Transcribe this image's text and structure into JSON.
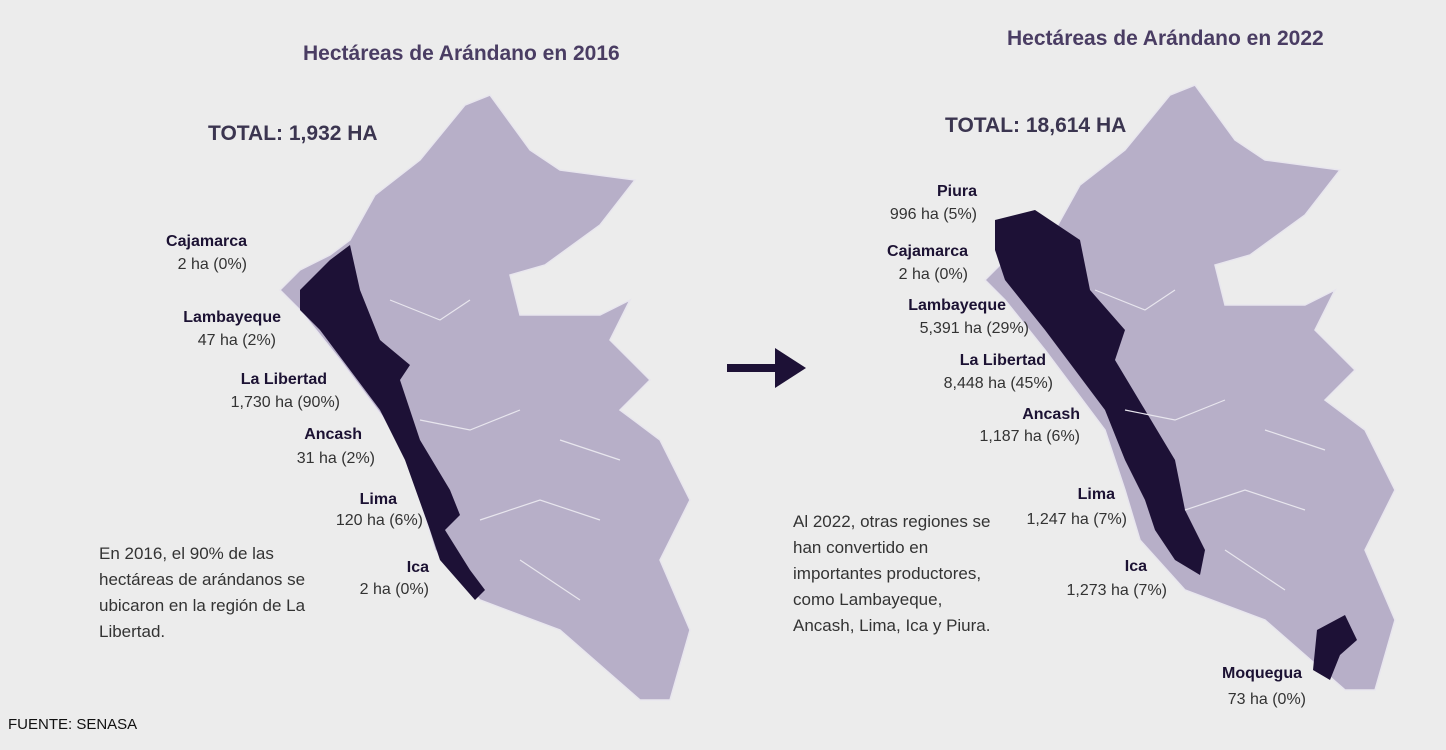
{
  "left": {
    "title": "Hectáreas de Arándano en 2016",
    "total": "TOTAL: 1,932 HA",
    "regions": [
      {
        "name": "Cajamarca",
        "value": "2 ha (0%)"
      },
      {
        "name": "Lambayeque",
        "value": "47 ha (2%)"
      },
      {
        "name": "La Libertad",
        "value": "1,730 ha (90%)"
      },
      {
        "name": "Ancash",
        "value": "31 ha (2%)"
      },
      {
        "name": "Lima",
        "value": "120 ha (6%)"
      },
      {
        "name": "Ica",
        "value": "2 ha (0%)"
      }
    ],
    "note": "En 2016, el 90% de las hectáreas de arándanos se ubicaron en la región de La Libertad."
  },
  "right": {
    "title": "Hectáreas de Arándano en 2022",
    "total": "TOTAL: 18,614 HA",
    "regions": [
      {
        "name": "Piura",
        "value": "996 ha (5%)"
      },
      {
        "name": "Cajamarca",
        "value": "2 ha (0%)"
      },
      {
        "name": "Lambayeque",
        "value": "5,391 ha (29%)"
      },
      {
        "name": "La Libertad",
        "value": "8,448 ha (45%)"
      },
      {
        "name": "Ancash",
        "value": "1,187 ha (6%)"
      },
      {
        "name": "Lima",
        "value": "1,247 ha (7%)"
      },
      {
        "name": "Ica",
        "value": "1,273 ha (7%)"
      },
      {
        "name": "Moquegua",
        "value": "73 ha (0%)"
      }
    ],
    "note": "Al 2022, otras regiones se han convertido en importantes productores, como Lambayeque, Ancash, Lima, Ica y Piura."
  },
  "source": "FUENTE: SENASA"
}
